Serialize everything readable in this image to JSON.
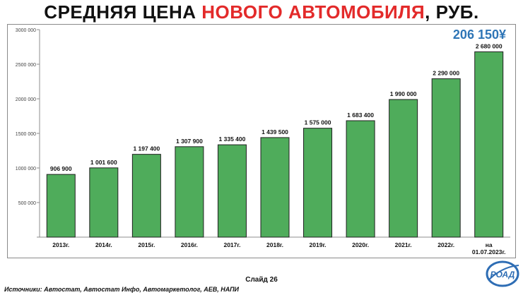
{
  "header": {
    "title_part1": "СРЕДНЯЯ ЦЕНА ",
    "title_highlight": "НОВОГО АВТОМОБИЛЯ",
    "title_part2": ", РУБ."
  },
  "footer": {
    "slide_label": "Слайд 26",
    "sources": "Источники: Автостат, Автостат Инфо, Автомаркетолог, АЕВ, НАПИ"
  },
  "logo": {
    "text": "РОАД"
  },
  "colors": {
    "bar": "#4fac5b",
    "bar_stroke": "#1f1f1f",
    "highlight": "#e32a2a",
    "callout": "#2e75b6"
  },
  "chart_data": {
    "type": "bar",
    "categories": [
      "2013г.",
      "2014г.",
      "2015г.",
      "2016г.",
      "2017г.",
      "2018г.",
      "2019г.",
      "2020г.",
      "2021г.",
      "2022г.",
      "на 01.07.2023г."
    ],
    "values": [
      906900,
      1001600,
      1197400,
      1307900,
      1335400,
      1439500,
      1575000,
      1683400,
      1990000,
      2290000,
      2680000
    ],
    "value_labels": [
      "906 900",
      "1 001 600",
      "1 197 400",
      "1 307 900",
      "1 335 400",
      "1 439 500",
      "1 575 000",
      "1 683 400",
      "1 990 000",
      "2 290 000",
      "2 680 000"
    ],
    "y_ticks": [
      "",
      "500 000",
      "1000 000",
      "1500 000",
      "2000 000",
      "2500 000",
      "3000 000"
    ],
    "ylim": [
      0,
      3000000
    ],
    "grid": false,
    "annotation": "206 150¥"
  }
}
